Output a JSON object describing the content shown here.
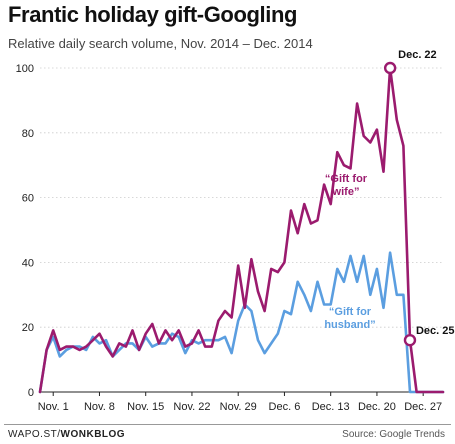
{
  "title": "Frantic holiday gift-Googling",
  "subtitle": "Relative daily search volume, Nov. 2014 – Dec. 2014",
  "footer": {
    "brand_prefix": "WAPO.ST/",
    "brand_name": "WONKBLOG",
    "source": "Source: Google Trends"
  },
  "chart_data": {
    "type": "line",
    "title": "Frantic holiday gift-Googling",
    "subtitle": "Relative daily search volume, Nov. 2014 – Dec. 2014",
    "xlabel": "",
    "ylabel": "",
    "ylim": [
      0,
      100
    ],
    "y_ticks": [
      0,
      20,
      40,
      60,
      80,
      100
    ],
    "x_ticks": [
      "Nov. 1",
      "Nov. 8",
      "Nov. 15",
      "Nov. 22",
      "Nov. 29",
      "Dec. 6",
      "Dec. 13",
      "Dec. 20",
      "Dec. 27"
    ],
    "x_dates": [
      "2014-10-30",
      "2014-10-31",
      "2014-11-01",
      "2014-11-02",
      "2014-11-03",
      "2014-11-04",
      "2014-11-05",
      "2014-11-06",
      "2014-11-07",
      "2014-11-08",
      "2014-11-09",
      "2014-11-10",
      "2014-11-11",
      "2014-11-12",
      "2014-11-13",
      "2014-11-14",
      "2014-11-15",
      "2014-11-16",
      "2014-11-17",
      "2014-11-18",
      "2014-11-19",
      "2014-11-20",
      "2014-11-21",
      "2014-11-22",
      "2014-11-23",
      "2014-11-24",
      "2014-11-25",
      "2014-11-26",
      "2014-11-27",
      "2014-11-28",
      "2014-11-29",
      "2014-11-30",
      "2014-12-01",
      "2014-12-02",
      "2014-12-03",
      "2014-12-04",
      "2014-12-05",
      "2014-12-06",
      "2014-12-07",
      "2014-12-08",
      "2014-12-09",
      "2014-12-10",
      "2014-12-11",
      "2014-12-12",
      "2014-12-13",
      "2014-12-14",
      "2014-12-15",
      "2014-12-16",
      "2014-12-17",
      "2014-12-18",
      "2014-12-19",
      "2014-12-20",
      "2014-12-21",
      "2014-12-22",
      "2014-12-23",
      "2014-12-24",
      "2014-12-25",
      "2014-12-26",
      "2014-12-27",
      "2014-12-28",
      "2014-12-29",
      "2014-12-30"
    ],
    "grid": true,
    "series": [
      {
        "name": "“Gift for wife”",
        "label_lines": [
          "“Gift for",
          "wife”"
        ],
        "color": "#9b1b6e",
        "values": [
          0,
          13,
          19,
          13,
          14,
          14,
          13,
          14,
          16,
          18,
          14,
          11,
          15,
          14,
          19,
          13,
          18,
          21,
          15,
          19,
          16,
          19,
          14,
          15,
          19,
          14,
          14,
          22,
          25,
          23,
          39,
          26,
          41,
          31,
          25,
          38,
          37,
          40,
          56,
          49,
          58,
          52,
          53,
          64,
          58,
          74,
          70,
          69,
          89,
          79,
          77,
          81,
          68,
          100,
          84,
          76,
          16,
          0,
          0,
          0,
          0,
          0
        ]
      },
      {
        "name": "“Gift for husband”",
        "label_lines": [
          "“Gift for",
          "husband”"
        ],
        "color": "#5b9ee0",
        "values": [
          0,
          13,
          17,
          11,
          13,
          14,
          14,
          13,
          17,
          15,
          16,
          11,
          13,
          15,
          15,
          13,
          17,
          14,
          15,
          15,
          18,
          17,
          12,
          16,
          15,
          16,
          16,
          16,
          17,
          12,
          22,
          27,
          25,
          16,
          12,
          15,
          18,
          25,
          24,
          34,
          30,
          25,
          34,
          27,
          27,
          38,
          34,
          42,
          34,
          42,
          30,
          38,
          26,
          43,
          30,
          30,
          0,
          0,
          0,
          0,
          0,
          0
        ]
      }
    ],
    "annotations": [
      {
        "label": "Dec. 22",
        "x": "2014-12-22",
        "y": 100,
        "series": 0
      },
      {
        "label": "Dec. 25",
        "x": "2014-12-25",
        "y": 16,
        "series": 0
      }
    ]
  }
}
